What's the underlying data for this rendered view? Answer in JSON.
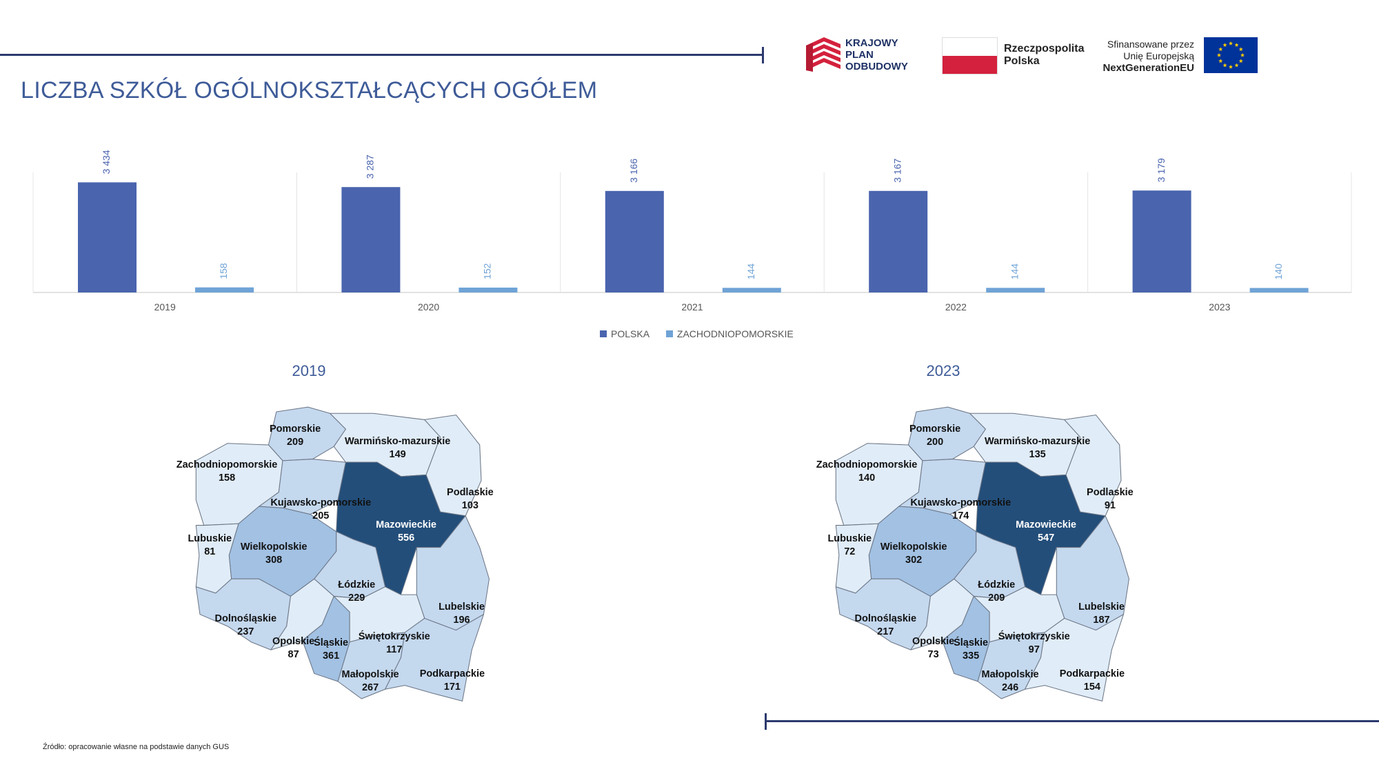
{
  "title": "LICZBA SZKÓŁ OGÓLNOKSZTAŁCĄCYCH OGÓŁEM",
  "logos": {
    "kpo": [
      "KRAJOWY",
      "PLAN",
      "ODBUDOWY"
    ],
    "rp": [
      "Rzeczpospolita",
      "Polska"
    ],
    "eu": [
      "Sfinansowane przez",
      "Unię Europejską",
      "NextGenerationEU"
    ]
  },
  "source": "Źródło: opracowanie własne na podstawie danych GUS",
  "colors": {
    "polska": "#4a64ae",
    "zachodniopomorskie": "#6fa3d6",
    "accent": "#3e5b98",
    "rule": "#2c3a6e",
    "map_scale": [
      "#e0ecf7",
      "#c4d8ee",
      "#a2c1e3",
      "#234e7a"
    ]
  },
  "chart_data": [
    {
      "type": "bar",
      "categories": [
        "2019",
        "2020",
        "2021",
        "2022",
        "2023"
      ],
      "series": [
        {
          "name": "POLSKA",
          "values": [
            3434,
            3287,
            3166,
            3167,
            3179
          ],
          "labels": [
            "3 434",
            "3 287",
            "3 166",
            "3 167",
            "3 179"
          ]
        },
        {
          "name": "ZACHODNIOPOMORSKIE",
          "values": [
            158,
            152,
            144,
            144,
            140
          ],
          "labels": [
            "158",
            "152",
            "144",
            "144",
            "140"
          ]
        }
      ],
      "ylim": [
        0,
        3700
      ],
      "legend": "bottom"
    },
    {
      "type": "map",
      "title": "2019",
      "regions": [
        {
          "name": "Pomorskie",
          "value": 209
        },
        {
          "name": "Warmińsko-mazurskie",
          "value": 149
        },
        {
          "name": "Zachodniopomorskie",
          "value": 158
        },
        {
          "name": "Podlaskie",
          "value": 103
        },
        {
          "name": "Kujawsko-pomorskie",
          "value": 205
        },
        {
          "name": "Mazowieckie",
          "value": 556
        },
        {
          "name": "Lubuskie",
          "value": 81
        },
        {
          "name": "Wielkopolskie",
          "value": 308
        },
        {
          "name": "Łódzkie",
          "value": 229
        },
        {
          "name": "Lubelskie",
          "value": 196
        },
        {
          "name": "Dolnośląskie",
          "value": 237
        },
        {
          "name": "Opolskie",
          "value": 87
        },
        {
          "name": "Śląskie",
          "value": 361
        },
        {
          "name": "Świętokrzyskie",
          "value": 117
        },
        {
          "name": "Małopolskie",
          "value": 267
        },
        {
          "name": "Podkarpackie",
          "value": 171
        }
      ]
    },
    {
      "type": "map",
      "title": "2023",
      "regions": [
        {
          "name": "Pomorskie",
          "value": 200
        },
        {
          "name": "Warmińsko-mazurskie",
          "value": 135
        },
        {
          "name": "Zachodniopomorskie",
          "value": 140
        },
        {
          "name": "Podlaskie",
          "value": 91
        },
        {
          "name": "Kujawsko-pomorskie",
          "value": 174
        },
        {
          "name": "Mazowieckie",
          "value": 547
        },
        {
          "name": "Lubuskie",
          "value": 72
        },
        {
          "name": "Wielkopolskie",
          "value": 302
        },
        {
          "name": "Łódzkie",
          "value": 209
        },
        {
          "name": "Lubelskie",
          "value": 187
        },
        {
          "name": "Dolnośląskie",
          "value": 217
        },
        {
          "name": "Opolskie",
          "value": 73
        },
        {
          "name": "Śląskie",
          "value": 335
        },
        {
          "name": "Świętokrzyskie",
          "value": 97
        },
        {
          "name": "Małopolskie",
          "value": 246
        },
        {
          "name": "Podkarpackie",
          "value": 154
        }
      ]
    }
  ]
}
